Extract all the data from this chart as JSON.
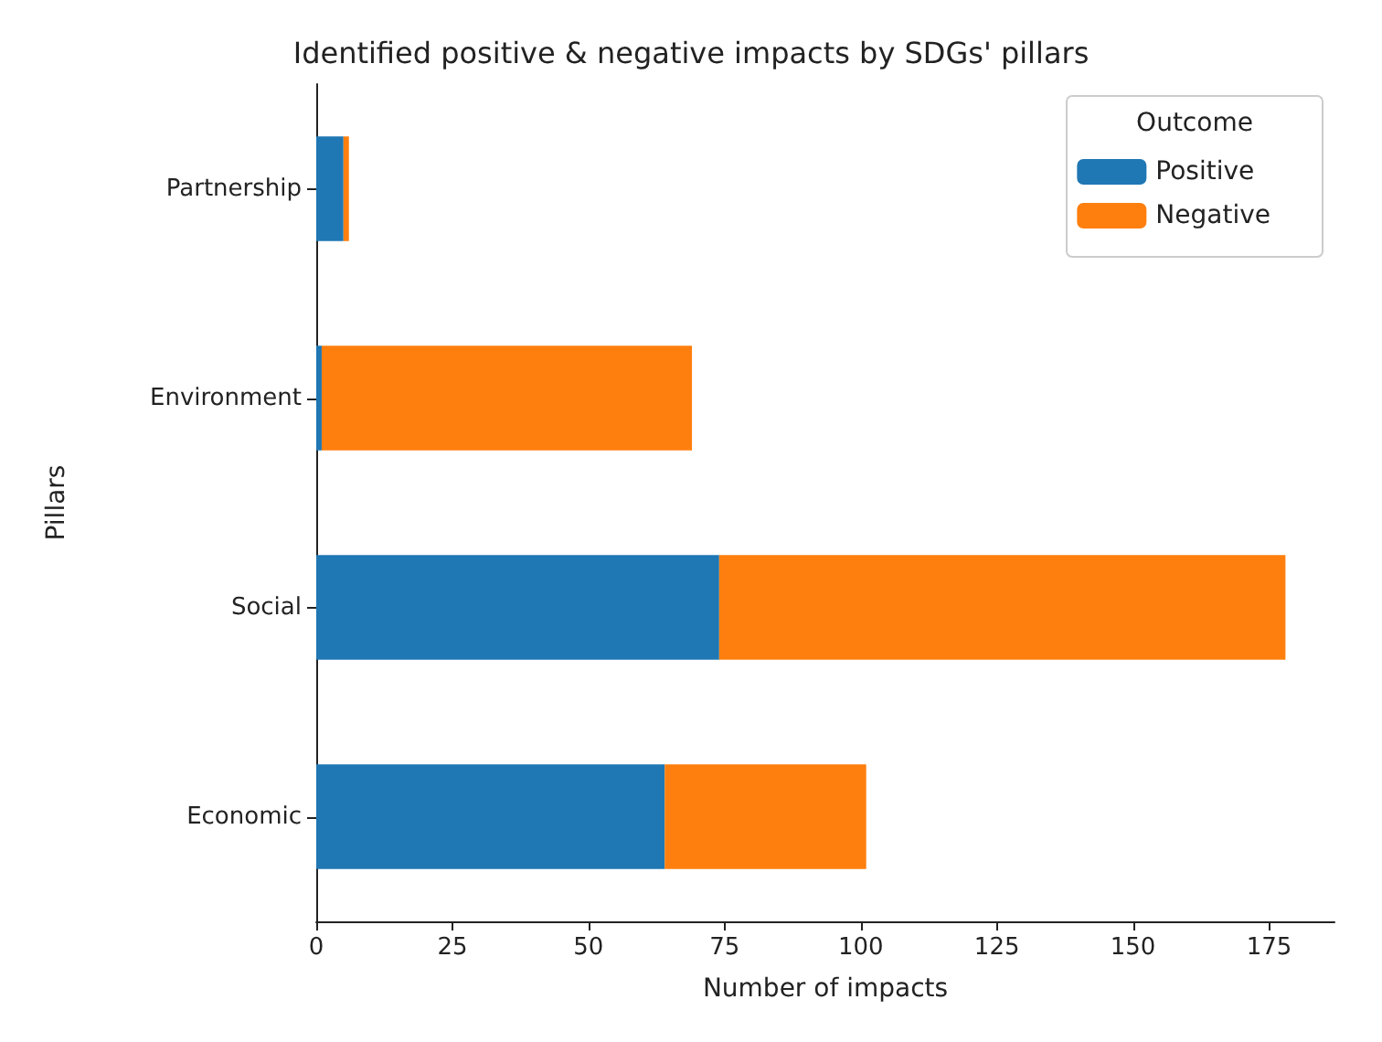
{
  "chart_data": {
    "type": "bar",
    "orientation": "horizontal",
    "stacked": true,
    "title": "Identified positive & negative impacts by SDGs' pillars",
    "xlabel": "Number of impacts",
    "ylabel": "Pillars",
    "legend_title": "Outcome",
    "legend": "top right",
    "grid": false,
    "categories": [
      "Partnership",
      "Environment",
      "Social",
      "Economic"
    ],
    "series": [
      {
        "name": "Positive",
        "color": "#1f77b4",
        "values": [
          5,
          1,
          74,
          64
        ]
      },
      {
        "name": "Negative",
        "color": "#ff7f0e",
        "values": [
          1,
          68,
          104,
          37
        ]
      }
    ],
    "xlim": [
      0,
      187
    ],
    "xticks": [
      0,
      25,
      50,
      75,
      100,
      125,
      150,
      175
    ]
  }
}
